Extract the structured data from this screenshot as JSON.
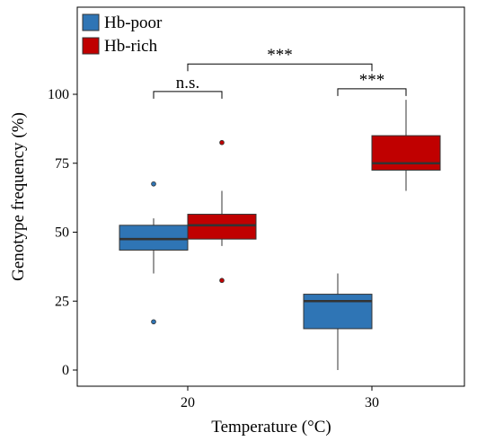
{
  "chart_data": {
    "type": "boxplot",
    "xlabel": "Temperature (°C)",
    "ylabel": "Genotype frequency (%)",
    "x_ticks": [
      "20",
      "30"
    ],
    "y_ticks": [
      0,
      25,
      50,
      75,
      100
    ],
    "ylim": [
      -5,
      130
    ],
    "legend_position": "top-left",
    "grid": false,
    "series": [
      {
        "name": "Hb-poor",
        "color": "#2f75b5"
      },
      {
        "name": "Hb-rich",
        "color": "#c00000"
      }
    ],
    "boxes": [
      {
        "category": "20",
        "series": "Hb-poor",
        "whisker_low": 35,
        "q1": 43.5,
        "median": 47.5,
        "q3": 52.5,
        "whisker_high": 55,
        "outliers": [
          17.5,
          67.5
        ]
      },
      {
        "category": "20",
        "series": "Hb-rich",
        "whisker_low": 45,
        "q1": 47.5,
        "median": 52.5,
        "q3": 56.5,
        "whisker_high": 65,
        "outliers": [
          32.5,
          82.5
        ]
      },
      {
        "category": "30",
        "series": "Hb-poor",
        "whisker_low": 0,
        "q1": 15,
        "median": 25,
        "q3": 27.5,
        "whisker_high": 35,
        "outliers": []
      },
      {
        "category": "30",
        "series": "Hb-rich",
        "whisker_low": 65,
        "q1": 72.5,
        "median": 75,
        "q3": 85,
        "whisker_high": 98,
        "outliers": []
      }
    ],
    "significance": [
      {
        "label": "n.s.",
        "kind": "within",
        "category": "20",
        "y": 101
      },
      {
        "label": "***",
        "kind": "within",
        "category": "30",
        "y": 102
      },
      {
        "label": "***",
        "kind": "between",
        "from": "20",
        "to": "30",
        "y": 111
      }
    ]
  }
}
